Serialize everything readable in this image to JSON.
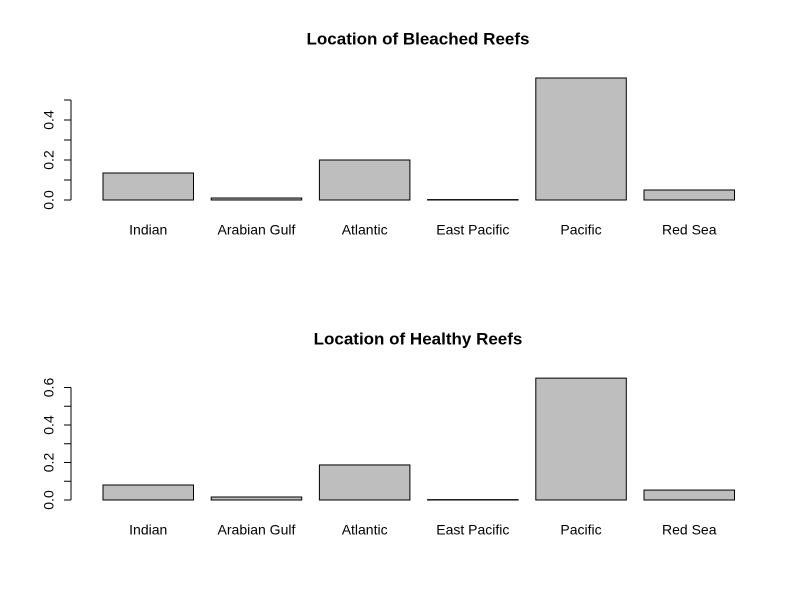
{
  "chart_data": [
    {
      "type": "bar",
      "title": "Location of Bleached Reefs",
      "categories": [
        "Indian",
        "Arabian Gulf",
        "Atlantic",
        "East Pacific",
        "Pacific",
        "Red Sea"
      ],
      "values": [
        0.135,
        0.01,
        0.2,
        0.002,
        0.61,
        0.05
      ],
      "color": "#bebebe",
      "ylim": [
        0,
        0.64
      ],
      "yticks": [
        {
          "value": 0,
          "label": "0.0"
        },
        {
          "value": 0.2,
          "label": "0.2"
        },
        {
          "value": 0.4,
          "label": "0.4"
        }
      ],
      "yticks_minor": [
        0.1,
        0.3,
        0.5
      ]
    },
    {
      "type": "bar",
      "title": "Location of Healthy Reefs",
      "categories": [
        "Indian",
        "Arabian Gulf",
        "Atlantic",
        "East Pacific",
        "Pacific",
        "Red Sea"
      ],
      "values": [
        0.08,
        0.016,
        0.187,
        0.002,
        0.65,
        0.053
      ],
      "color": "#bebebe",
      "ylim": [
        0,
        0.68
      ],
      "yticks": [
        {
          "value": 0,
          "label": "0.0"
        },
        {
          "value": 0.2,
          "label": "0.2"
        },
        {
          "value": 0.4,
          "label": "0.4"
        },
        {
          "value": 0.6,
          "label": "0.6"
        }
      ],
      "yticks_minor": [
        0.1,
        0.3,
        0.5
      ]
    }
  ]
}
